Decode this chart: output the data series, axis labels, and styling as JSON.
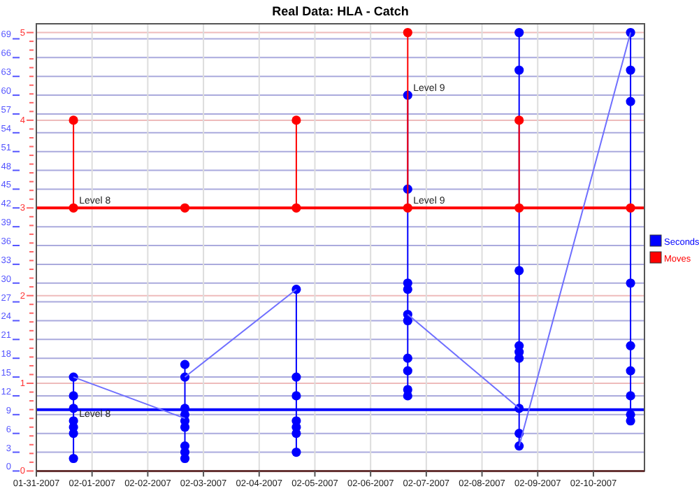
{
  "chart_data": {
    "type": "line",
    "title": "Real Data: HLA - Catch",
    "xlim": [
      "2007-01-31",
      "2007-02-10T22:00"
    ],
    "xticks": [
      {
        "value": "2007-01-31",
        "label": "01-31-2007"
      },
      {
        "value": "2007-02-01",
        "label": "02-01-2007"
      },
      {
        "value": "2007-02-02",
        "label": "02-02-2007"
      },
      {
        "value": "2007-02-03",
        "label": "02-03-2007"
      },
      {
        "value": "2007-02-04",
        "label": "02-04-2007"
      },
      {
        "value": "2007-02-05",
        "label": "02-05-2007"
      },
      {
        "value": "2007-02-06",
        "label": "02-06-2007"
      },
      {
        "value": "2007-02-07",
        "label": "02-07-2007"
      },
      {
        "value": "2007-02-08",
        "label": "02-08-2007"
      },
      {
        "value": "2007-02-09",
        "label": "02-09-2007"
      },
      {
        "value": "2007-02-10",
        "label": "02-10-2007"
      }
    ],
    "ylim": [
      0,
      71.4
    ],
    "yticks": [
      0,
      3,
      6,
      9,
      12,
      15,
      18,
      21,
      24,
      27,
      30,
      33,
      36,
      39,
      42,
      45,
      48,
      51,
      54,
      57,
      60,
      63,
      66,
      69
    ],
    "y2lim": [
      0,
      5.1
    ],
    "y2ticks": [
      0,
      {
        "value": 0.1,
        "label": null
      },
      {
        "value": 0.2,
        "label": null
      },
      {
        "value": 0.3,
        "label": null
      },
      {
        "value": 0.4,
        "label": null
      },
      {
        "value": 0.5,
        "label": null
      },
      {
        "value": 0.6,
        "label": null
      },
      {
        "value": 0.7,
        "label": null
      },
      {
        "value": 0.8,
        "label": null
      },
      {
        "value": 0.9,
        "label": null
      },
      1,
      {
        "value": 1.1,
        "label": null
      },
      {
        "value": 1.2,
        "label": null
      },
      {
        "value": 1.3,
        "label": null
      },
      {
        "value": 1.4,
        "label": null
      },
      {
        "value": 1.5,
        "label": null
      },
      {
        "value": 1.6,
        "label": null
      },
      {
        "value": 1.7,
        "label": null
      },
      {
        "value": 1.8,
        "label": null
      },
      {
        "value": 1.9,
        "label": null
      },
      2,
      {
        "value": 2.1,
        "label": null
      },
      {
        "value": 2.2,
        "label": null
      },
      {
        "value": 2.3,
        "label": null
      },
      {
        "value": 2.4,
        "label": null
      },
      {
        "value": 2.5,
        "label": null
      },
      {
        "value": 2.6,
        "label": null
      },
      {
        "value": 2.7,
        "label": null
      },
      {
        "value": 2.8,
        "label": null
      },
      {
        "value": 2.9,
        "label": null
      },
      3,
      {
        "value": 3.1,
        "label": null
      },
      {
        "value": 3.2,
        "label": null
      },
      {
        "value": 3.3,
        "label": null
      },
      {
        "value": 3.4,
        "label": null
      },
      {
        "value": 3.5,
        "label": null
      },
      {
        "value": 3.6,
        "label": null
      },
      {
        "value": 3.7,
        "label": null
      },
      {
        "value": 3.8,
        "label": null
      },
      {
        "value": 3.9,
        "label": null
      },
      4,
      {
        "value": 4.1,
        "label": null
      },
      {
        "value": 4.2,
        "label": null
      },
      {
        "value": 4.3,
        "label": null
      },
      {
        "value": 4.4,
        "label": null
      },
      {
        "value": 4.5,
        "label": null
      },
      {
        "value": 4.6,
        "label": null
      },
      {
        "value": 4.7,
        "label": null
      },
      {
        "value": 4.8,
        "label": null
      },
      {
        "value": 4.9,
        "label": null
      },
      5
    ],
    "grid": true,
    "legend": "right",
    "series": [
      {
        "name": "Seconds",
        "color": "#0000ff",
        "marker": "circle",
        "x": [
          "2007-01-31T16:00",
          "2007-01-31T16:00",
          "2007-01-31T16:00",
          "2007-01-31T16:00",
          "2007-01-31T16:00",
          "2007-01-31T16:00",
          "2007-01-31T16:00",
          null,
          "2007-02-02T16:00",
          "2007-02-02T16:00",
          "2007-02-02T16:00",
          "2007-02-02T16:00",
          "2007-02-02T16:00",
          "2007-02-02T16:00",
          "2007-02-02T16:00",
          "2007-02-02T16:00",
          "2007-02-02T16:00",
          null,
          "2007-02-04T16:00",
          "2007-02-04T16:00",
          "2007-02-04T16:00",
          "2007-02-04T16:00",
          "2007-02-04T16:00",
          "2007-02-04T16:00",
          "2007-02-04T16:00",
          null,
          "2007-02-06T16:00",
          "2007-02-06T16:00",
          "2007-02-06T16:00",
          "2007-02-06T16:00",
          "2007-02-06T16:00",
          "2007-02-06T16:00",
          "2007-02-06T16:00",
          "2007-02-06T16:00",
          "2007-02-06T16:00",
          "2007-02-06T16:00",
          null,
          "2007-02-08T16:00",
          "2007-02-08T16:00",
          "2007-02-08T16:00",
          "2007-02-08T16:00",
          "2007-02-08T16:00",
          "2007-02-08T16:00",
          "2007-02-08T16:00",
          "2007-02-08T16:00",
          "2007-02-08T16:00",
          null,
          "2007-02-10T16:00",
          "2007-02-10T16:00",
          "2007-02-10T16:00",
          "2007-02-10T16:00",
          "2007-02-10T16:00",
          "2007-02-10T16:00",
          "2007-02-10T16:00",
          "2007-02-10T16:00",
          "2007-02-10T16:00"
        ],
        "values": [
          2,
          6,
          7,
          8,
          10,
          12,
          15,
          null,
          2,
          3,
          4,
          7,
          8,
          9,
          10,
          15,
          17,
          null,
          3,
          6,
          7,
          8,
          12,
          15,
          29,
          null,
          12,
          13,
          16,
          18,
          24,
          25,
          29,
          30,
          45,
          60,
          null,
          4,
          6,
          10,
          18,
          19,
          20,
          32,
          64,
          70,
          null,
          8,
          9,
          12,
          16,
          20,
          30,
          59,
          64,
          70
        ]
      },
      {
        "name": "Moves",
        "color": "#ff0000",
        "marker": "circle",
        "axis": "y2",
        "x": [
          "2007-01-31T16:00",
          "2007-01-31T16:00",
          null,
          "2007-02-02T16:00",
          null,
          "2007-02-04T16:00",
          "2007-02-04T16:00",
          null,
          "2007-02-06T16:00",
          "2007-02-06T16:00",
          null,
          "2007-02-08T16:00",
          "2007-02-08T16:00",
          null,
          "2007-02-10T16:00"
        ],
        "values": [
          3,
          4,
          null,
          3,
          null,
          3,
          4,
          null,
          3,
          5,
          null,
          3,
          4,
          null,
          3
        ]
      },
      {
        "color": "#6f6fff",
        "marker": "none",
        "x": [
          "2007-01-31T16:00",
          "2007-02-02T16:00",
          null,
          "2007-02-02T16:00",
          "2007-02-04T16:00",
          null,
          "2007-02-06T16:00",
          "2007-02-08T16:00",
          null,
          "2007-02-08T16:00",
          "2007-02-10T16:00"
        ],
        "values": [
          15,
          8.4,
          null,
          15,
          29,
          null,
          25,
          10,
          null,
          4,
          70
        ]
      }
    ],
    "ref_lines": [
      {
        "axis": "y2",
        "value": 3,
        "color": "#ff0000"
      },
      {
        "axis": "y",
        "value": 9.8,
        "color": "#0000ff"
      }
    ],
    "annotations": [
      {
        "text": "Level 8",
        "x": "2007-01-31T16:00",
        "y": 42
      },
      {
        "text": "Level 8",
        "x": "2007-01-31T16:00",
        "y": 8
      },
      {
        "text": "Level 9",
        "x": "2007-02-06T16:00",
        "y": 42
      },
      {
        "text": "Level 9",
        "x": "2007-02-06T16:00",
        "y": 60
      }
    ]
  }
}
